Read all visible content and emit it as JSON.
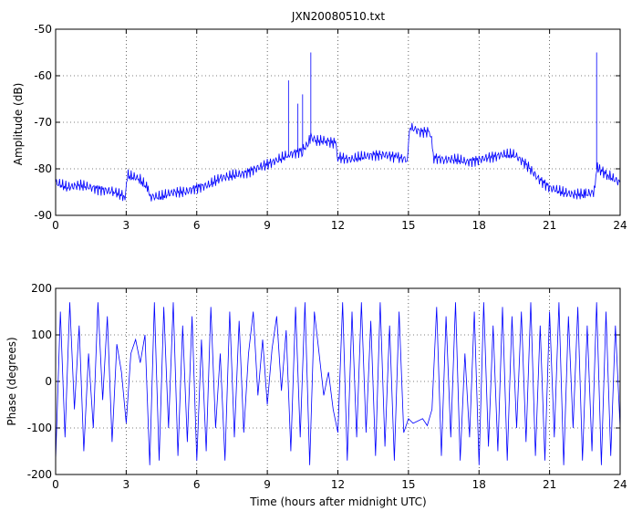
{
  "chart_data": [
    {
      "type": "line",
      "title": "JXN20080510.txt",
      "xlabel": "",
      "ylabel": "Amplitude (dB)",
      "xlim": [
        0,
        24
      ],
      "ylim": [
        -90,
        -50
      ],
      "xticks": [
        0,
        3,
        6,
        9,
        12,
        15,
        18,
        21,
        24
      ],
      "yticks": [
        -90,
        -80,
        -70,
        -60,
        -50
      ],
      "grid": true,
      "series": [
        {
          "color": "#0000ff",
          "x": [
            0,
            0.5,
            1,
            1.5,
            2,
            2.5,
            2.95,
            3.05,
            3.5,
            3.9,
            4.0,
            4.5,
            5,
            5.5,
            6,
            6.5,
            7,
            7.5,
            8,
            8.5,
            9,
            9.5,
            9.9,
            10.2,
            10.5,
            10.75,
            10.85,
            11.0,
            11.5,
            11.9,
            12.0,
            12.5,
            13,
            13.5,
            14,
            14.5,
            14.95,
            15.05,
            15.5,
            15.95,
            16.05,
            16.5,
            17,
            17.5,
            18,
            18.5,
            19,
            19.5,
            20,
            20.5,
            21,
            21.5,
            22,
            22.5,
            22.9,
            23.0,
            23.1,
            23.5,
            24
          ],
          "values": [
            -83,
            -84,
            -83.5,
            -84,
            -84.5,
            -85,
            -86,
            -81.5,
            -82,
            -84,
            -86,
            -86,
            -85,
            -85,
            -84,
            -83.5,
            -82,
            -81.5,
            -81,
            -80,
            -79,
            -78,
            -77,
            -76.5,
            -76,
            -74.5,
            -73,
            -74,
            -74,
            -74.5,
            -77.5,
            -78,
            -77.5,
            -77,
            -77,
            -77.5,
            -78,
            -71,
            -72,
            -72,
            -77.5,
            -78,
            -78,
            -78.5,
            -78,
            -77.5,
            -77,
            -77,
            -79,
            -82,
            -84,
            -85,
            -85.5,
            -85.5,
            -85,
            -80,
            -80,
            -81.5,
            -83
          ]
        }
      ],
      "spikes": [
        {
          "x": 9.9,
          "value": -61
        },
        {
          "x": 10.3,
          "value": -66
        },
        {
          "x": 10.5,
          "value": -64
        },
        {
          "x": 10.85,
          "value": -55
        },
        {
          "x": 23.0,
          "value": -55
        }
      ]
    },
    {
      "type": "line",
      "title": "",
      "xlabel": "Time (hours after midnight UTC)",
      "ylabel": "Phase (degrees)",
      "xlim": [
        0,
        24
      ],
      "ylim": [
        -200,
        200
      ],
      "xticks": [
        0,
        3,
        6,
        9,
        12,
        15,
        18,
        21,
        24
      ],
      "yticks": [
        -200,
        -100,
        0,
        100,
        200
      ],
      "grid": true,
      "series": [
        {
          "color": "#0000ff",
          "x": [
            0,
            0.2,
            0.4,
            0.6,
            0.8,
            1.0,
            1.2,
            1.4,
            1.6,
            1.8,
            2.0,
            2.2,
            2.4,
            2.6,
            2.8,
            3.0,
            3.2,
            3.4,
            3.6,
            3.8,
            4.0,
            4.2,
            4.4,
            4.6,
            4.8,
            5.0,
            5.2,
            5.4,
            5.6,
            5.8,
            6.0,
            6.2,
            6.4,
            6.6,
            6.8,
            7.0,
            7.2,
            7.4,
            7.6,
            7.8,
            8.0,
            8.2,
            8.4,
            8.6,
            8.8,
            9.0,
            9.2,
            9.4,
            9.6,
            9.8,
            10.0,
            10.2,
            10.4,
            10.6,
            10.8,
            11.0,
            11.2,
            11.4,
            11.6,
            11.8,
            12.0,
            12.2,
            12.4,
            12.6,
            12.8,
            13.0,
            13.2,
            13.4,
            13.6,
            13.8,
            14.0,
            14.2,
            14.4,
            14.6,
            14.8,
            15.0,
            15.2,
            15.4,
            15.6,
            15.8,
            16.0,
            16.2,
            16.4,
            16.6,
            16.8,
            17.0,
            17.2,
            17.4,
            17.6,
            17.8,
            18.0,
            18.2,
            18.4,
            18.6,
            18.8,
            19.0,
            19.2,
            19.4,
            19.6,
            19.8,
            20.0,
            20.2,
            20.4,
            20.6,
            20.8,
            21.0,
            21.2,
            21.4,
            21.6,
            21.8,
            22.0,
            22.2,
            22.4,
            22.6,
            22.8,
            23.0,
            23.2,
            23.4,
            23.6,
            23.8,
            24.0
          ],
          "values": [
            -170,
            150,
            -120,
            170,
            -60,
            120,
            -150,
            60,
            -100,
            170,
            -40,
            140,
            -130,
            80,
            20,
            -90,
            60,
            90,
            40,
            100,
            -180,
            170,
            -170,
            160,
            -100,
            170,
            -160,
            120,
            -130,
            140,
            -170,
            90,
            -150,
            160,
            -100,
            60,
            -170,
            150,
            -120,
            130,
            -110,
            60,
            150,
            -30,
            90,
            -50,
            70,
            140,
            -20,
            110,
            -150,
            160,
            -120,
            170,
            -180,
            150,
            60,
            -30,
            20,
            -60,
            -110,
            170,
            -170,
            150,
            -120,
            170,
            -110,
            130,
            -160,
            170,
            -140,
            120,
            -170,
            150,
            -110,
            -80,
            -90,
            -85,
            -80,
            -95,
            -60,
            160,
            -160,
            140,
            -120,
            170,
            -170,
            60,
            -120,
            150,
            -180,
            170,
            -140,
            120,
            -150,
            160,
            -170,
            140,
            -100,
            150,
            -130,
            170,
            -160,
            120,
            -170,
            150,
            -120,
            170,
            -180,
            140,
            -100,
            160,
            -170,
            120,
            -150,
            170,
            -180,
            150,
            -160,
            120,
            -100
          ]
        }
      ]
    }
  ]
}
